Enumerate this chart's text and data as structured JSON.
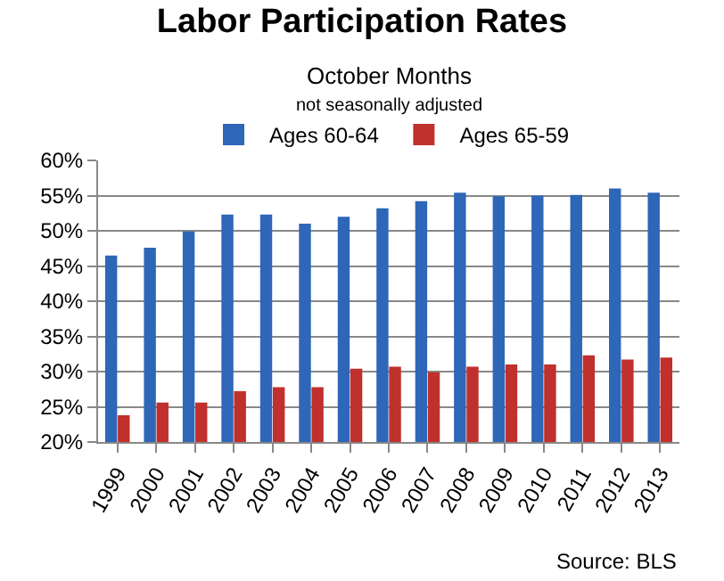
{
  "chart_data": {
    "type": "bar",
    "title": "Labor Participation Rates",
    "subtitle": "October Months\nnot seasonally adjusted",
    "categories": [
      "1999",
      "2000",
      "2001",
      "2002",
      "2003",
      "2004",
      "2005",
      "2006",
      "2007",
      "2008",
      "2009",
      "2010",
      "2011",
      "2012",
      "2013"
    ],
    "series": [
      {
        "name": "Ages 60-64",
        "color": "#2e66b8",
        "values": [
          46.5,
          47.6,
          49.9,
          52.3,
          52.3,
          51.0,
          52.0,
          53.2,
          54.2,
          55.4,
          54.9,
          55.0,
          55.1,
          56.0,
          55.4
        ]
      },
      {
        "name": "Ages 65-59",
        "color": "#c0302c",
        "values": [
          23.8,
          25.6,
          25.6,
          27.2,
          27.8,
          27.8,
          30.4,
          30.7,
          29.9,
          30.7,
          31.0,
          31.0,
          32.3,
          31.7,
          32.0
        ]
      }
    ],
    "ylim": [
      20,
      60
    ],
    "yticks": [
      {
        "value": 20,
        "label": "20%"
      },
      {
        "value": 25,
        "label": "25%"
      },
      {
        "value": 30,
        "label": "30%"
      },
      {
        "value": 35,
        "label": "35%"
      },
      {
        "value": 40,
        "label": "40%"
      },
      {
        "value": 45,
        "label": "45%"
      },
      {
        "value": 50,
        "label": "50%"
      },
      {
        "value": 55,
        "label": "55%"
      },
      {
        "value": 60,
        "label": "60%"
      }
    ],
    "grid": "y",
    "legend": "top",
    "annotations": [
      "Source: BLS"
    ]
  }
}
